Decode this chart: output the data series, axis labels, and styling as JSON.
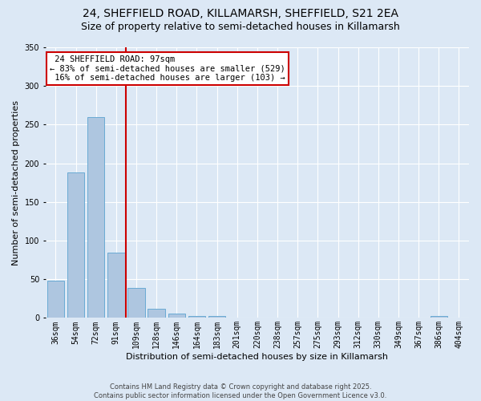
{
  "title": "24, SHEFFIELD ROAD, KILLAMARSH, SHEFFIELD, S21 2EA",
  "subtitle": "Size of property relative to semi-detached houses in Killamarsh",
  "xlabel": "Distribution of semi-detached houses by size in Killamarsh",
  "ylabel": "Number of semi-detached properties",
  "bin_labels": [
    "36sqm",
    "54sqm",
    "72sqm",
    "91sqm",
    "109sqm",
    "128sqm",
    "146sqm",
    "164sqm",
    "183sqm",
    "201sqm",
    "220sqm",
    "238sqm",
    "257sqm",
    "275sqm",
    "293sqm",
    "312sqm",
    "330sqm",
    "349sqm",
    "367sqm",
    "386sqm",
    "404sqm"
  ],
  "values": [
    48,
    188,
    260,
    84,
    39,
    12,
    6,
    3,
    2,
    0,
    0,
    0,
    0,
    0,
    0,
    0,
    0,
    0,
    0,
    2,
    0
  ],
  "bar_color": "#aec6e0",
  "bar_edge_color": "#6aaad4",
  "vline_x_idx": 3,
  "vline_color": "#cc0000",
  "annotation_box_color": "#cc0000",
  "property_label": "24 SHEFFIELD ROAD: 97sqm",
  "pct_smaller": 83,
  "count_smaller": 529,
  "pct_larger": 16,
  "count_larger": 103,
  "background_color": "#dce8f5",
  "plot_bg_color": "#dce8f5",
  "grid_color": "#ffffff",
  "ylim": [
    0,
    350
  ],
  "yticks": [
    0,
    50,
    100,
    150,
    200,
    250,
    300,
    350
  ],
  "title_fontsize": 10,
  "subtitle_fontsize": 9,
  "axis_label_fontsize": 8,
  "tick_fontsize": 7,
  "annotation_fontsize": 7.5,
  "footer": "Contains HM Land Registry data © Crown copyright and database right 2025.\nContains public sector information licensed under the Open Government Licence v3.0.",
  "footer_fontsize": 6
}
